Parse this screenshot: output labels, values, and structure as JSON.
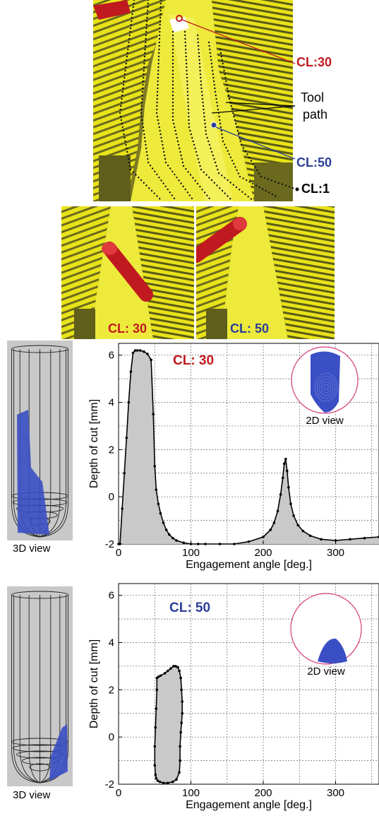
{
  "scene": {
    "labels": {
      "cl30": "CL:30",
      "tool_path": [
        "Tool",
        "path"
      ],
      "cl50": "CL:50",
      "cl1": "CL:1"
    },
    "insets": [
      {
        "label": "CL: 30",
        "color": "#c0191f"
      },
      {
        "label": "CL: 50",
        "color": "#2c3e9a"
      }
    ],
    "colors": {
      "red": "#c0191f",
      "blue": "#2c3e9a",
      "surface": "#e8e21a",
      "shadow": "#6b6a1e"
    }
  },
  "panels": [
    {
      "view3d_label": "3D view",
      "view2d_label": "2D view",
      "chart_data": {
        "type": "area",
        "title": "CL: 30",
        "title_color": "#c0191f",
        "xlabel": "Engagement angle [deg.]",
        "ylabel": "Depth of cut [mm]",
        "xlim": [
          0,
          360
        ],
        "ylim": [
          -2,
          6.5
        ],
        "xticks": [
          0,
          100,
          200,
          300
        ],
        "yticks": [
          -2,
          0,
          2,
          4,
          6
        ],
        "grid": true,
        "x": [
          0,
          2,
          5,
          8,
          11,
          14,
          17,
          20,
          23,
          26,
          30,
          35,
          40,
          45,
          48,
          50,
          52,
          55,
          58,
          62,
          66,
          70,
          75,
          80,
          90,
          100,
          110,
          120,
          140,
          160,
          180,
          200,
          210,
          215,
          220,
          224,
          227,
          229,
          231,
          233,
          235,
          238,
          242,
          248,
          255,
          265,
          280,
          300,
          320,
          340,
          360
        ],
        "y": [
          -2,
          -2,
          -0.5,
          1,
          2.5,
          4,
          5.3,
          6.1,
          6.2,
          6.2,
          6.2,
          6.15,
          6.05,
          5.8,
          3.5,
          1.3,
          0.3,
          -0.3,
          -0.7,
          -1.1,
          -1.4,
          -1.6,
          -1.75,
          -1.85,
          -1.95,
          -2,
          -2,
          -2,
          -2,
          -2,
          -1.9,
          -1.7,
          -1.4,
          -1.1,
          -0.6,
          0.1,
          0.8,
          1.4,
          1.6,
          1.1,
          0.4,
          -0.3,
          -0.8,
          -1.2,
          -1.45,
          -1.65,
          -1.8,
          -1.85,
          -1.8,
          -1.75,
          -1.7
        ]
      }
    },
    {
      "view3d_label": "3D view",
      "view2d_label": "2D view",
      "chart_data": {
        "type": "area",
        "title": "CL: 50",
        "title_color": "#2c3e9a",
        "xlabel": "Engagement angle [deg.]",
        "ylabel": "Depth of cut [mm]",
        "xlim": [
          0,
          360
        ],
        "ylim": [
          -2,
          6.5
        ],
        "xticks": [
          0,
          100,
          200,
          300
        ],
        "yticks": [
          -2,
          0,
          2,
          4,
          6
        ],
        "grid": true,
        "x": [
          53,
          53,
          52,
          51,
          50,
          50,
          51,
          52,
          54,
          57,
          62,
          68,
          75,
          80,
          84,
          85,
          85,
          86,
          87,
          88,
          88,
          87,
          86,
          84,
          82,
          79,
          76,
          72,
          68,
          64,
          58,
          55
        ],
        "y": [
          2.5,
          2.0,
          1.2,
          0.4,
          -0.4,
          -1.2,
          -1.6,
          -1.75,
          -1.85,
          -1.9,
          -1.95,
          -1.95,
          -1.9,
          -1.8,
          -1.5,
          -1.0,
          -0.4,
          0.2,
          0.6,
          1.0,
          1.5,
          2.0,
          2.5,
          2.8,
          2.95,
          3.0,
          3.0,
          2.9,
          2.8,
          2.7,
          2.6,
          2.55
        ]
      }
    }
  ]
}
